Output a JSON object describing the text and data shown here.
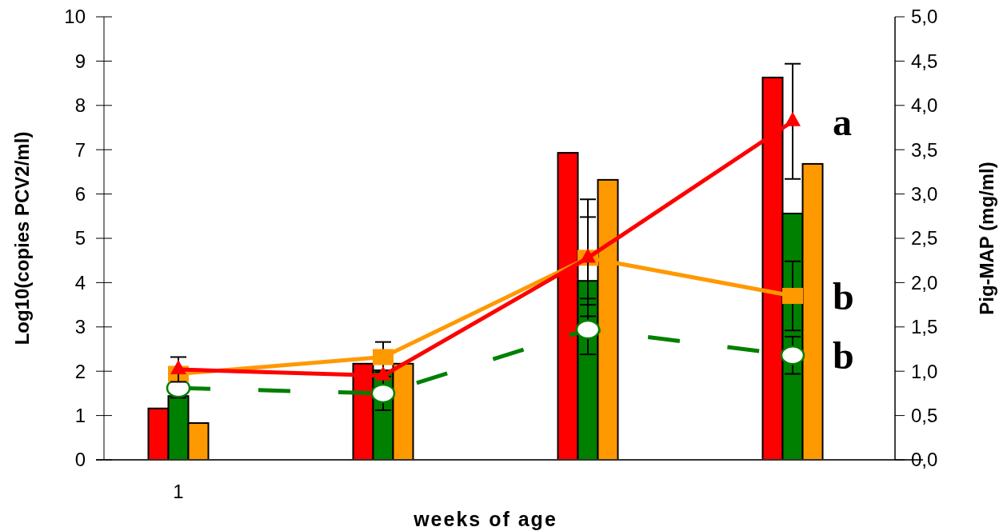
{
  "chart_data": {
    "type": "bar",
    "xlabel": "weeks of age",
    "ylabel": "Log10(copies PCV2/ml)",
    "y2label": "Pig-MAP (mg/ml)",
    "categories": [
      "1",
      null,
      null,
      null
    ],
    "series": [
      {
        "color": "#ff0000",
        "values": [
          1.16,
          2.17,
          6.93,
          8.63
        ]
      },
      {
        "color": "#008000",
        "values": [
          1.44,
          2.02,
          4.04,
          5.56
        ]
      },
      {
        "color": "#ff9900",
        "values": [
          0.83,
          2.17,
          6.32,
          6.68
        ]
      },
      {
        "type": "line",
        "axis": "y2",
        "color": "#008000",
        "marker": "circle",
        "line_style": "dashed",
        "values": [
          0.81,
          0.75,
          1.47,
          1.18
        ],
        "errors": [
          0.11,
          0.19,
          0.28,
          0.21
        ]
      },
      {
        "type": "line",
        "axis": "y2",
        "color": "#ff9900",
        "marker": "square",
        "line_style": "solid",
        "values": [
          0.97,
          1.16,
          2.28,
          1.85
        ],
        "errors": [
          null,
          0.17,
          0.46,
          0.39
        ]
      },
      {
        "type": "line",
        "axis": "y2",
        "color": "#ff0000",
        "marker": "triangle",
        "line_style": "solid",
        "values": [
          1.02,
          0.95,
          2.28,
          3.82
        ],
        "errors": [
          0.14,
          null,
          0.66,
          0.65
        ]
      }
    ],
    "annotations": [
      "b",
      "b",
      "a"
    ],
    "ylim": [
      0,
      10
    ],
    "yticks": [
      0,
      1,
      2,
      3,
      4,
      5,
      6,
      7,
      8,
      9,
      10
    ],
    "y2lim": [
      0,
      5
    ],
    "y2ticks": [
      {
        "value": 0,
        "label": "0,0"
      },
      {
        "value": 0.5,
        "label": "0,5"
      },
      {
        "value": 1,
        "label": "1,0"
      },
      {
        "value": 1.5,
        "label": "1,5"
      },
      {
        "value": 2,
        "label": "2,0"
      },
      {
        "value": 2.5,
        "label": "2,5"
      },
      {
        "value": 3,
        "label": "3,0"
      },
      {
        "value": 3.5,
        "label": "3,5"
      },
      {
        "value": 4,
        "label": "4,0"
      },
      {
        "value": 4.5,
        "label": "4,5"
      },
      {
        "value": 5,
        "label": "5,0"
      }
    ],
    "grid": false
  }
}
